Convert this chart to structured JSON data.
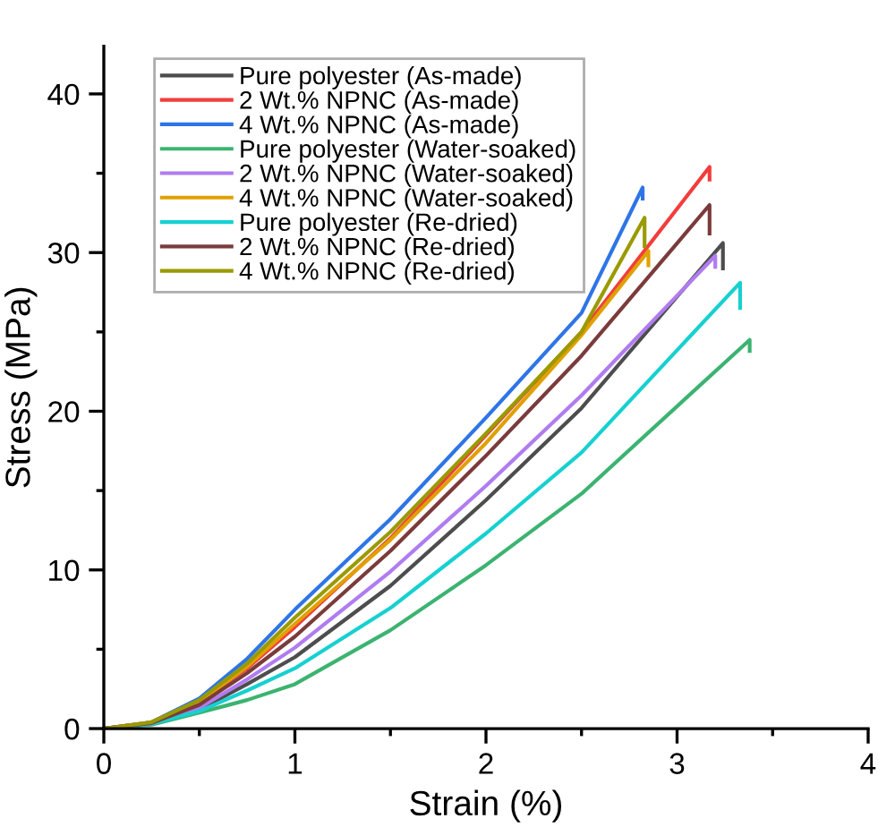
{
  "chart_data": {
    "type": "line",
    "xlabel": "Strain (%)",
    "ylabel": "Stress (MPa)",
    "xlim": [
      0,
      4
    ],
    "xticks": [
      0,
      1,
      2,
      3,
      4
    ],
    "ylim": [
      0,
      43
    ],
    "yticks": [
      0,
      10,
      20,
      30,
      40
    ],
    "grid": false,
    "legend": "top left",
    "marker": "none",
    "line_style": "solid",
    "series": [
      {
        "name": "Pure polyester (As-made)",
        "color": "#4d4d4d",
        "x": [
          0,
          0.25,
          0.5,
          0.75,
          1,
          1.5,
          2,
          2.5,
          3.24,
          3.24
        ],
        "values": [
          0,
          0.3,
          1.2,
          2.8,
          4.5,
          9.0,
          14.4,
          20.2,
          30.6,
          29.0
        ]
      },
      {
        "name": "2 Wt.% NPNC (As-made)",
        "color": "#f23d3d",
        "x": [
          0,
          0.25,
          0.5,
          0.75,
          1,
          1.5,
          2,
          2.5,
          3.17,
          3.17
        ],
        "values": [
          0,
          0.4,
          1.7,
          3.8,
          6.4,
          12.0,
          18.5,
          25.0,
          35.4,
          34.6
        ]
      },
      {
        "name": "4 Wt.% NPNC (As-made)",
        "color": "#2e75e6",
        "x": [
          0,
          0.25,
          0.5,
          0.75,
          1,
          1.5,
          2,
          2.5,
          2.82,
          2.82
        ],
        "values": [
          0,
          0.4,
          1.9,
          4.4,
          7.5,
          13.2,
          19.6,
          26.2,
          34.1,
          33.4
        ]
      },
      {
        "name": "Pure polyester (Water-soaked)",
        "color": "#3cb371",
        "x": [
          0,
          0.25,
          0.5,
          0.75,
          1,
          1.5,
          2,
          2.5,
          3.38,
          3.38
        ],
        "values": [
          0,
          0.25,
          1.0,
          1.8,
          2.8,
          6.2,
          10.3,
          14.8,
          24.5,
          23.8
        ]
      },
      {
        "name": "2 Wt.% NPNC (Water-soaked)",
        "color": "#b07cf0",
        "x": [
          0,
          0.25,
          0.5,
          0.75,
          1,
          1.5,
          2,
          2.5,
          3.2,
          3.2
        ],
        "values": [
          0,
          0.3,
          1.3,
          3.1,
          5.1,
          9.9,
          15.3,
          21.0,
          29.8,
          29.1
        ]
      },
      {
        "name": "4 Wt.% NPNC (Water-soaked)",
        "color": "#e0a000",
        "x": [
          0,
          0.25,
          0.5,
          0.75,
          1,
          1.5,
          2,
          2.5,
          2.85,
          2.85
        ],
        "values": [
          0,
          0.4,
          1.7,
          3.9,
          6.6,
          11.9,
          18.0,
          24.8,
          30.1,
          29.2
        ]
      },
      {
        "name": "Pure polyester (Re-dried)",
        "color": "#17d0d0",
        "x": [
          0,
          0.25,
          0.5,
          0.75,
          1,
          1.5,
          2,
          2.5,
          3.33,
          3.33
        ],
        "values": [
          0,
          0.3,
          1.1,
          2.4,
          3.8,
          7.6,
          12.3,
          17.4,
          28.1,
          26.5
        ]
      },
      {
        "name": "2 Wt.% NPNC (Re-dried)",
        "color": "#7b3b3b",
        "x": [
          0,
          0.25,
          0.5,
          0.75,
          1,
          1.5,
          2,
          2.5,
          3.17,
          3.17
        ],
        "values": [
          0,
          0.35,
          1.5,
          3.5,
          5.8,
          11.2,
          17.2,
          23.5,
          33.0,
          31.2
        ]
      },
      {
        "name": "4 Wt.% NPNC (Re-dried)",
        "color": "#9a9a00",
        "x": [
          0,
          0.25,
          0.5,
          0.75,
          1,
          1.5,
          2,
          2.5,
          2.83,
          2.83
        ],
        "values": [
          0,
          0.4,
          1.8,
          4.1,
          7.0,
          12.4,
          18.6,
          25.0,
          32.2,
          30.4
        ]
      }
    ]
  }
}
